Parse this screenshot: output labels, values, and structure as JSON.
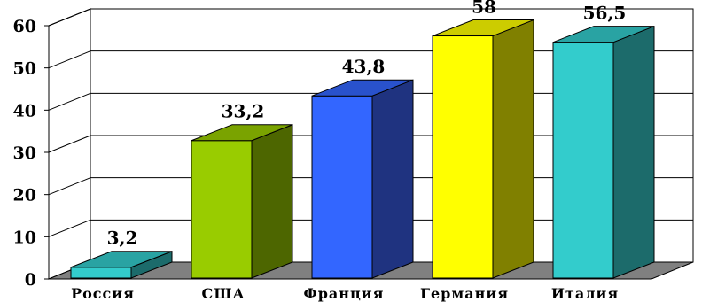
{
  "chart_data": {
    "type": "bar",
    "categories": [
      "Россия",
      "США",
      "Франция",
      "Германия",
      "Италия"
    ],
    "values": [
      3.2,
      33.2,
      43.8,
      58,
      56.5
    ],
    "value_labels": [
      "3,2",
      "33,2",
      "43,8",
      "58",
      "56,5"
    ],
    "y_ticks": [
      "0",
      "10",
      "20",
      "30",
      "40",
      "50",
      "60"
    ],
    "ylim": [
      0,
      60
    ],
    "grid": true,
    "legend": false,
    "style": "3d-column",
    "colors": [
      {
        "front": "#33CCCC",
        "side": "#1C6B6B",
        "top": "#29A3A3"
      },
      {
        "front": "#99CC00",
        "side": "#4D6600",
        "top": "#7AA300"
      },
      {
        "front": "#3366FF",
        "side": "#1F3380",
        "top": "#2952CC"
      },
      {
        "front": "#FFFF00",
        "side": "#808000",
        "top": "#CCCC00"
      },
      {
        "front": "#33CCCC",
        "side": "#1C6B6B",
        "top": "#29A3A3"
      }
    ],
    "floor_color": "#808080"
  }
}
